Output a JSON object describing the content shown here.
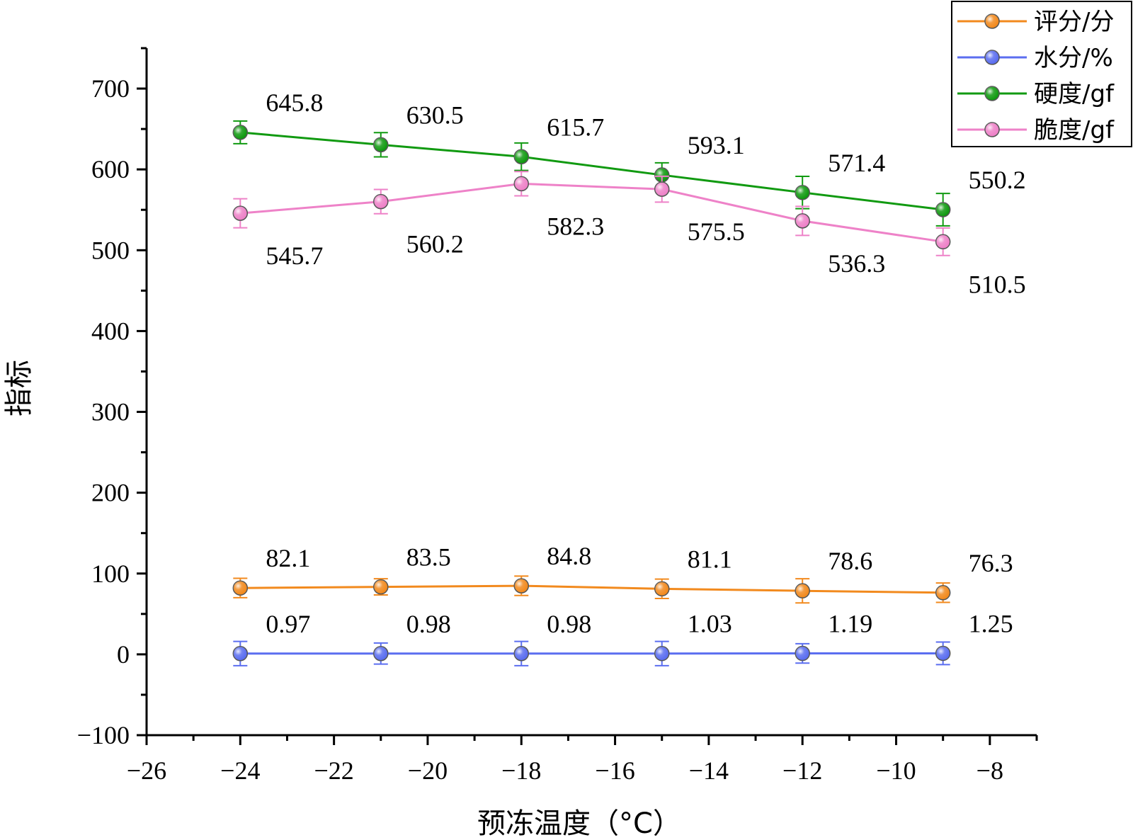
{
  "chart_data": {
    "type": "line",
    "title": "",
    "xlabel": "预冻温度（°C）",
    "ylabel": "指标",
    "xlim": [
      -26,
      -7
    ],
    "ylim": [
      -100,
      750
    ],
    "x_ticks": [
      -26,
      -24,
      -22,
      -20,
      -18,
      -16,
      -14,
      -12,
      -10,
      -8
    ],
    "x_tick_labels": [
      "−26",
      "−24",
      "−22",
      "−20",
      "−18",
      "−16",
      "−14",
      "−12",
      "−10",
      "−8"
    ],
    "y_ticks": [
      -100,
      0,
      100,
      200,
      300,
      400,
      500,
      600,
      700
    ],
    "y_tick_labels": [
      "−100",
      "0",
      "100",
      "200",
      "300",
      "400",
      "500",
      "600",
      "700"
    ],
    "x": [
      -24,
      -21,
      -18,
      -15,
      -12,
      -9
    ],
    "legend_position": "top-right",
    "series": [
      {
        "name": "评分/分",
        "color": "#f28a1e",
        "values": [
          82.1,
          83.5,
          84.8,
          81.1,
          78.6,
          76.3
        ],
        "errors": [
          12,
          10,
          12,
          12,
          15,
          12
        ],
        "labels": [
          "82.1",
          "83.5",
          "84.8",
          "81.1",
          "78.6",
          "76.3"
        ],
        "label_position": "above"
      },
      {
        "name": "水分/%",
        "color": "#5b6ef0",
        "values": [
          0.97,
          0.98,
          0.98,
          1.03,
          1.19,
          1.25
        ],
        "errors": [
          15,
          13,
          15,
          15,
          12,
          14
        ],
        "labels": [
          "0.97",
          "0.98",
          "0.98",
          "1.03",
          "1.19",
          "1.25"
        ],
        "label_position": "above"
      },
      {
        "name": "硬度/gf",
        "color": "#119a11",
        "values": [
          645.8,
          630.5,
          615.7,
          593.1,
          571.4,
          550.2
        ],
        "errors": [
          14,
          15,
          17,
          15,
          20,
          20
        ],
        "labels": [
          "645.8",
          "630.5",
          "615.7",
          "593.1",
          "571.4",
          "550.2"
        ],
        "label_position": "above"
      },
      {
        "name": "脆度/gf",
        "color": "#ee82c8",
        "values": [
          545.7,
          560.2,
          582.3,
          575.5,
          536.3,
          510.5
        ],
        "errors": [
          18,
          15,
          15,
          16,
          18,
          17
        ],
        "labels": [
          "545.7",
          "560.2",
          "582.3",
          "575.5",
          "536.3",
          "510.5"
        ],
        "label_position": "below"
      }
    ]
  }
}
